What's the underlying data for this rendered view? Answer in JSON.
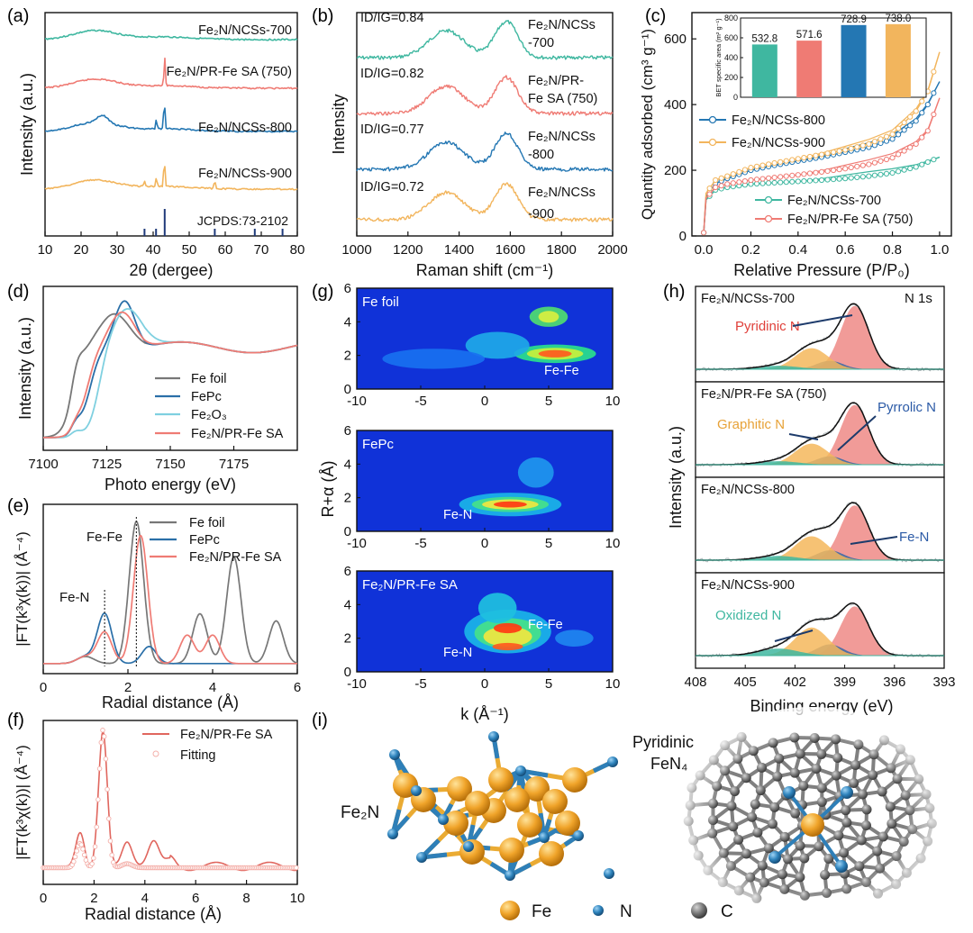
{
  "panel_letters": [
    "(a)",
    "(b)",
    "(c)",
    "(d)",
    "(e)",
    "(f)",
    "(g)",
    "(h)",
    "(i)"
  ],
  "chart_data": [
    {
      "panel": "a",
      "type": "line",
      "xlabel": "2θ (dergee)",
      "ylabel": "Intensity (a.u.)",
      "xlim": [
        10,
        80
      ],
      "xticks": [
        10,
        20,
        30,
        40,
        50,
        60,
        70,
        80
      ],
      "series": [
        {
          "name": "Fe2N/NCSs-700",
          "label": "Fe₂N/NCSs-700",
          "color": "#3fb7a0",
          "peaks": []
        },
        {
          "name": "Fe2N/PR-Fe SA (750)",
          "label": "Fe₂N/PR-Fe SA (750)",
          "color": "#ef7b74",
          "peaks": [
            43.2
          ]
        },
        {
          "name": "Fe2N/NCSs-800",
          "label": "Fe₂N/NCSs-800",
          "color": "#2477b3",
          "peaks": [
            40.9,
            43.1
          ]
        },
        {
          "name": "Fe2N/NCSs-900",
          "label": "Fe₂N/NCSs-900",
          "color": "#f2b55d",
          "peaks": [
            37.6,
            40.9,
            43.1,
            57.1
          ]
        }
      ],
      "reference": {
        "label": "JCPDS:73-2102",
        "color": "#1f3a7a",
        "lines": [
          37.6,
          40.8,
          43.2,
          57.1,
          68.2,
          75.9
        ]
      }
    },
    {
      "panel": "b",
      "type": "line",
      "xlabel": "Raman shift (cm⁻¹)",
      "ylabel": "Intensity",
      "xlim": [
        1000,
        2000
      ],
      "xticks": [
        1000,
        1200,
        1400,
        1600,
        1800,
        2000
      ],
      "D_band": 1350,
      "G_band": 1585,
      "series": [
        {
          "name": "Fe2N/NCSs-700",
          "label_lines": [
            "Fe₂N/NCSs",
            "-700"
          ],
          "ratio": "ID/IG=0.84",
          "color": "#3fb7a0"
        },
        {
          "name": "Fe2N/PR-Fe SA (750)",
          "label_lines": [
            "Fe₂N/PR-",
            "Fe SA (750)"
          ],
          "ratio": "ID/IG=0.82",
          "color": "#ef7b74"
        },
        {
          "name": "Fe2N/NCSs-800",
          "label_lines": [
            "Fe₂N/NCSs",
            "-800"
          ],
          "ratio": "ID/IG=0.77",
          "color": "#2477b3"
        },
        {
          "name": "Fe2N/NCSs-900",
          "label_lines": [
            "Fe₂N/NCSs",
            "-900"
          ],
          "ratio": "ID/IG=0.72",
          "color": "#f2b55d"
        }
      ]
    },
    {
      "panel": "c",
      "type": "line",
      "xlabel": "Relative Pressure (P/P₀)",
      "ylabel": "Quantity adsorbed (cm³ g⁻¹)",
      "xlim": [
        -0.05,
        1.05
      ],
      "ylim": [
        0,
        680
      ],
      "xticks": [
        0.0,
        0.2,
        0.4,
        0.6,
        0.8,
        1.0
      ],
      "yticks": [
        0,
        200,
        400,
        600
      ],
      "series": [
        {
          "name": "Fe2N/NCSs-800",
          "label": "Fe₂N/NCSs-800",
          "color": "#2477b3",
          "x": [
            0.0,
            0.01,
            0.05,
            0.1,
            0.2,
            0.3,
            0.4,
            0.5,
            0.6,
            0.7,
            0.8,
            0.9,
            0.95,
            1.0
          ],
          "y": [
            10,
            120,
            160,
            175,
            200,
            215,
            228,
            240,
            255,
            270,
            295,
            350,
            400,
            470
          ]
        },
        {
          "name": "Fe2N/NCSs-900",
          "label": "Fe₂N/NCSs-900",
          "color": "#f2b55d",
          "x": [
            0.0,
            0.01,
            0.05,
            0.1,
            0.2,
            0.3,
            0.4,
            0.5,
            0.6,
            0.7,
            0.8,
            0.9,
            0.95,
            1.0
          ],
          "y": [
            10,
            130,
            170,
            182,
            208,
            222,
            235,
            248,
            262,
            280,
            310,
            380,
            440,
            560
          ]
        },
        {
          "name": "Fe2N/NCSs-700",
          "label": "Fe₂N/NCSs-700",
          "color": "#3fb7a0",
          "x": [
            0.0,
            0.01,
            0.05,
            0.1,
            0.2,
            0.3,
            0.4,
            0.5,
            0.6,
            0.7,
            0.8,
            0.9,
            0.95,
            1.0
          ],
          "y": [
            10,
            110,
            140,
            148,
            158,
            162,
            166,
            170,
            175,
            182,
            192,
            210,
            225,
            240
          ]
        },
        {
          "name": "Fe2N/PR-Fe SA (750)",
          "label": "Fe₂N/PR-Fe SA (750)",
          "color": "#ef7b74",
          "x": [
            0.0,
            0.01,
            0.05,
            0.1,
            0.2,
            0.3,
            0.4,
            0.5,
            0.6,
            0.7,
            0.8,
            0.9,
            0.95,
            1.0
          ],
          "y": [
            10,
            115,
            148,
            158,
            170,
            178,
            186,
            195,
            205,
            218,
            238,
            280,
            320,
            420
          ]
        }
      ],
      "inset": {
        "type": "bar",
        "ylabel": "BET specific area (m² g⁻¹)",
        "ylim": [
          0,
          800
        ],
        "yticks": [
          0,
          100,
          200,
          300,
          400,
          500,
          600,
          700,
          800
        ],
        "values": [
          532.8,
          571.6,
          728.9,
          738.0
        ],
        "labels": [
          "532.8",
          "571.6",
          "728.9",
          "738.0"
        ],
        "colors": [
          "#3fb7a0",
          "#ef7b74",
          "#2477b3",
          "#f2b55d"
        ]
      }
    },
    {
      "panel": "d",
      "type": "line",
      "xlabel": "Photo energy (eV)",
      "ylabel": "Intensity (a.u.)",
      "xlim": [
        7100,
        7200
      ],
      "xticks": [
        7100,
        7125,
        7150,
        7175
      ],
      "series": [
        {
          "name": "Fe foil",
          "label": "Fe foil",
          "color": "#777777"
        },
        {
          "name": "FePc",
          "label": "FePc",
          "color": "#2a6fa8"
        },
        {
          "name": "Fe2O3",
          "label": "Fe₂O₃",
          "color": "#7fd0e0"
        },
        {
          "name": "Fe2N/PR-Fe SA",
          "label": "Fe₂N/PR-Fe SA",
          "color": "#ef7b74"
        }
      ]
    },
    {
      "panel": "e",
      "type": "line",
      "xlabel": "Radial distance (Å)",
      "ylabel": "|FT(k³χ(k))| (Å⁻⁴)",
      "xlim": [
        0,
        6
      ],
      "xticks": [
        0,
        2,
        4,
        6
      ],
      "annotations": [
        "Fe-Fe",
        "Fe-N"
      ],
      "dotted_lines": [
        1.45,
        2.2
      ],
      "series": [
        {
          "name": "Fe foil",
          "label": "Fe foil",
          "color": "#777777",
          "peaks": [
            [
              2.2,
              1.0
            ],
            [
              3.7,
              0.35
            ],
            [
              4.5,
              0.75
            ],
            [
              5.5,
              0.3
            ]
          ]
        },
        {
          "name": "FePc",
          "label": "FePc",
          "color": "#2a6fa8",
          "peaks": [
            [
              1.45,
              0.35
            ],
            [
              2.5,
              0.12
            ]
          ]
        },
        {
          "name": "Fe2N/PR-Fe SA",
          "label": "Fe₂N/PR-Fe SA",
          "color": "#ef7b74",
          "peaks": [
            [
              1.45,
              0.22
            ],
            [
              2.3,
              0.9
            ],
            [
              3.4,
              0.2
            ],
            [
              4.0,
              0.2
            ]
          ]
        }
      ]
    },
    {
      "panel": "f",
      "type": "line",
      "xlabel": "Radial distance (Å)",
      "ylabel": "|FT(k³χ(k))| (Å⁻⁴)",
      "xlim": [
        0,
        10
      ],
      "xticks": [
        0,
        2,
        4,
        6,
        8,
        10
      ],
      "series": [
        {
          "name": "Fe2N/PR-Fe SA",
          "label": "Fe₂N/PR-Fe SA",
          "color": "#e0665e"
        },
        {
          "name": "Fitting",
          "label": "Fitting",
          "color": "#f4b0aa"
        }
      ]
    },
    {
      "panel": "g",
      "type": "heatmap",
      "xlabel": "k (Å⁻¹)",
      "ylabel": "R+α (Å)",
      "xlim": [
        -10,
        10
      ],
      "ylim": [
        0,
        6
      ],
      "xticks": [
        -10,
        -5,
        0,
        5,
        10
      ],
      "yticks": [
        0,
        2,
        4,
        6
      ],
      "maps": [
        {
          "name": "Fe foil",
          "features": [
            {
              "label": "Fe-Fe",
              "k": 6,
              "r": 2.2
            }
          ]
        },
        {
          "name": "FePc",
          "features": [
            {
              "label": "Fe-N",
              "k": 2,
              "r": 1.6
            }
          ]
        },
        {
          "name": "Fe2N/PR-Fe SA",
          "title": "Fe₂N/PR-Fe SA",
          "features": [
            {
              "label": "Fe-Fe",
              "k": 2,
              "r": 2.6
            },
            {
              "label": "Fe-N",
              "k": 2,
              "r": 1.5
            }
          ]
        }
      ]
    },
    {
      "panel": "h",
      "type": "line",
      "xlabel": "Binding energy (eV)",
      "ylabel": "Intensity (a.u.)",
      "xlim": [
        408,
        393
      ],
      "xticks": [
        408,
        405,
        402,
        399,
        396,
        393
      ],
      "title": "N 1s",
      "components": [
        {
          "name": "Pyridinic N",
          "center": 398.4,
          "color": "#ef8a86"
        },
        {
          "name": "Pyrrolic N / Fe-N",
          "center": 399.9,
          "color": "#3567a8"
        },
        {
          "name": "Graphitic N",
          "center": 401.0,
          "color": "#f4b75c"
        },
        {
          "name": "Oxidized N",
          "center": 403.0,
          "color": "#3fb7a0"
        }
      ],
      "spectra": [
        {
          "name": "Fe2N/NCSs-700",
          "label": "Fe₂N/NCSs-700"
        },
        {
          "name": "Fe2N/PR-Fe SA (750)",
          "label": "Fe₂N/PR-Fe SA (750)"
        },
        {
          "name": "Fe2N/NCSs-800",
          "label": "Fe₂N/NCSs-800"
        },
        {
          "name": "Fe2N/NCSs-900",
          "label": "Fe₂N/NCSs-900"
        }
      ],
      "annotations": [
        "Pyridinic N",
        "Pyrrolic N",
        "Graphitic N",
        "Fe-N",
        "Oxidized N"
      ]
    },
    {
      "panel": "i",
      "type": "structure",
      "labels": [
        "Fe₂N",
        "Pyridinic",
        "FeN₄"
      ],
      "legend": [
        {
          "name": "Fe",
          "color": "#e8a21e"
        },
        {
          "name": "N",
          "color": "#2e7fb8"
        },
        {
          "name": "C",
          "color": "#6a6a6a"
        }
      ]
    }
  ]
}
